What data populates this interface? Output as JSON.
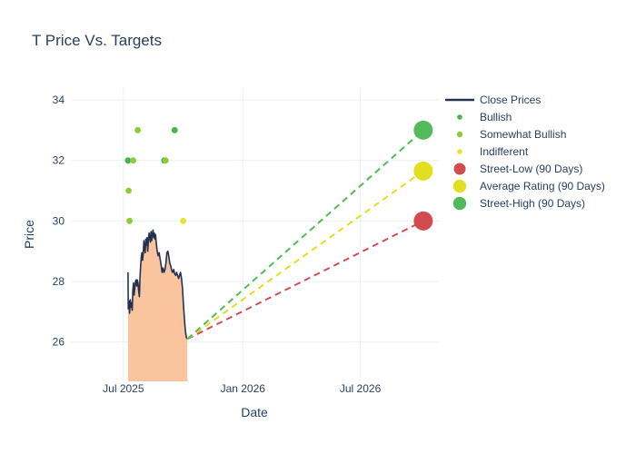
{
  "colors": {
    "text": "#2a3f5f",
    "grid": "#ebf0f8",
    "close_line": "#243250",
    "close_fill": "#f9c49e",
    "bullish": "#45b54c",
    "somewhat_bullish": "#8ecb38",
    "indifferent": "#e5e32e",
    "street_low": "#d24b50",
    "average_rating": "#e2de20",
    "street_high": "#52ba5a"
  },
  "chart_data": {
    "type": "line",
    "title": "T Price Vs. Targets",
    "xlabel": "Date",
    "ylabel": "Price",
    "x_axis": {
      "note": "t = days since 2025-07-01",
      "ticks": [
        {
          "label": "Jul 2025",
          "t": 0
        },
        {
          "label": "Jan 2026",
          "t": 184
        },
        {
          "label": "Jul 2026",
          "t": 365
        }
      ],
      "range_t": [
        -81,
        486
      ]
    },
    "y_axis": {
      "ticks": [
        26,
        28,
        30,
        32,
        34
      ],
      "range": [
        24.7,
        34.42
      ]
    },
    "close_prices": {
      "name": "Close Prices",
      "points": [
        [
          7,
          28.3
        ],
        [
          7.5,
          27.1
        ],
        [
          8.5,
          27.35
        ],
        [
          9.5,
          26.95
        ],
        [
          10.5,
          27.4
        ],
        [
          11.5,
          27.15
        ],
        [
          12.5,
          27.3
        ],
        [
          13.5,
          27.05
        ],
        [
          14.5,
          27.7
        ],
        [
          15.5,
          27.95
        ],
        [
          16.5,
          27.55
        ],
        [
          17.5,
          27.8
        ],
        [
          18.5,
          28.0
        ],
        [
          19.5,
          28.05
        ],
        [
          20.5,
          27.85
        ],
        [
          21.5,
          28.05
        ],
        [
          22.5,
          27.95
        ],
        [
          23.5,
          27.7
        ],
        [
          24.5,
          27.5
        ],
        [
          25.5,
          28.15
        ],
        [
          26.5,
          28.5
        ],
        [
          27.5,
          28.8
        ],
        [
          28.5,
          28.95
        ],
        [
          29.5,
          28.7
        ],
        [
          30.5,
          28.9
        ],
        [
          31.5,
          29.35
        ],
        [
          32.5,
          29.1
        ],
        [
          33.5,
          28.95
        ],
        [
          34.5,
          29.4
        ],
        [
          35.5,
          29.2
        ],
        [
          36.5,
          29.45
        ],
        [
          37.5,
          29.0
        ],
        [
          38.5,
          29.4
        ],
        [
          39.5,
          29.6
        ],
        [
          40.5,
          29.45
        ],
        [
          41.5,
          29.3
        ],
        [
          42.5,
          29.65
        ],
        [
          43.5,
          29.35
        ],
        [
          44.5,
          29.55
        ],
        [
          45.5,
          29.7
        ],
        [
          46.5,
          29.45
        ],
        [
          47.5,
          29.6
        ],
        [
          48.5,
          29.4
        ],
        [
          49.5,
          29.55
        ],
        [
          50.5,
          29.3
        ],
        [
          52,
          29.0
        ],
        [
          53.5,
          28.85
        ],
        [
          55,
          28.95
        ],
        [
          56.5,
          28.75
        ],
        [
          58,
          28.55
        ],
        [
          59.5,
          28.3
        ],
        [
          61,
          28.45
        ],
        [
          62.5,
          28.3
        ],
        [
          64,
          28.4
        ],
        [
          65.5,
          28.6
        ],
        [
          67,
          28.95
        ],
        [
          68.5,
          29.0
        ],
        [
          70,
          28.8
        ],
        [
          71.5,
          28.6
        ],
        [
          73,
          28.5
        ],
        [
          74.5,
          28.35
        ],
        [
          76,
          28.3
        ],
        [
          77.5,
          28.4
        ],
        [
          79,
          28.25
        ],
        [
          80.5,
          28.2
        ],
        [
          82,
          28.3
        ],
        [
          83.5,
          28.2
        ],
        [
          85,
          28.1
        ],
        [
          86.5,
          28.2
        ],
        [
          88,
          28.3
        ],
        [
          89.5,
          28.1
        ],
        [
          91,
          27.75
        ],
        [
          92.5,
          27.25
        ],
        [
          94,
          26.75
        ],
        [
          95.5,
          26.35
        ],
        [
          97,
          26.15
        ],
        [
          98.5,
          26.1
        ]
      ]
    },
    "ratings": [
      {
        "name": "Bullish",
        "color_key": "bullish",
        "points": [
          [
            7,
            32
          ],
          [
            63,
            32
          ],
          [
            79,
            33
          ]
        ]
      },
      {
        "name": "Somewhat Bullish",
        "color_key": "somewhat_bullish",
        "points": [
          [
            22,
            33
          ],
          [
            15,
            32
          ],
          [
            65,
            32
          ],
          [
            8,
            31
          ],
          [
            9.4,
            30
          ]
        ]
      },
      {
        "name": "Indifferent",
        "color_key": "indifferent",
        "points": [
          [
            92,
            30
          ]
        ]
      }
    ],
    "targets": [
      {
        "name": "Street-Low (90 Days)",
        "color_key": "street_low",
        "t": 462,
        "price": 30
      },
      {
        "name": "Average Rating (90 Days)",
        "color_key": "average_rating",
        "t": 462,
        "price": 31.65
      },
      {
        "name": "Street-High (90 Days)",
        "color_key": "street_high",
        "t": 462,
        "price": 33
      }
    ],
    "legend": [
      {
        "type": "line",
        "label": "Close Prices",
        "color_key": "close_line"
      },
      {
        "type": "dot",
        "r": 2.8,
        "label": "Bullish",
        "color_key": "bullish"
      },
      {
        "type": "dot",
        "r": 3.2,
        "label": "Somewhat Bullish",
        "color_key": "somewhat_bullish"
      },
      {
        "type": "dot",
        "r": 2.8,
        "label": "Indifferent",
        "color_key": "indifferent"
      },
      {
        "type": "dot",
        "r": 6.5,
        "label": "Street-Low (90 Days)",
        "color_key": "street_low"
      },
      {
        "type": "dot",
        "r": 7.2,
        "label": "Average Rating (90 Days)",
        "color_key": "average_rating"
      },
      {
        "type": "dot",
        "r": 7.2,
        "label": "Street-High (90 Days)",
        "color_key": "street_high"
      }
    ]
  }
}
